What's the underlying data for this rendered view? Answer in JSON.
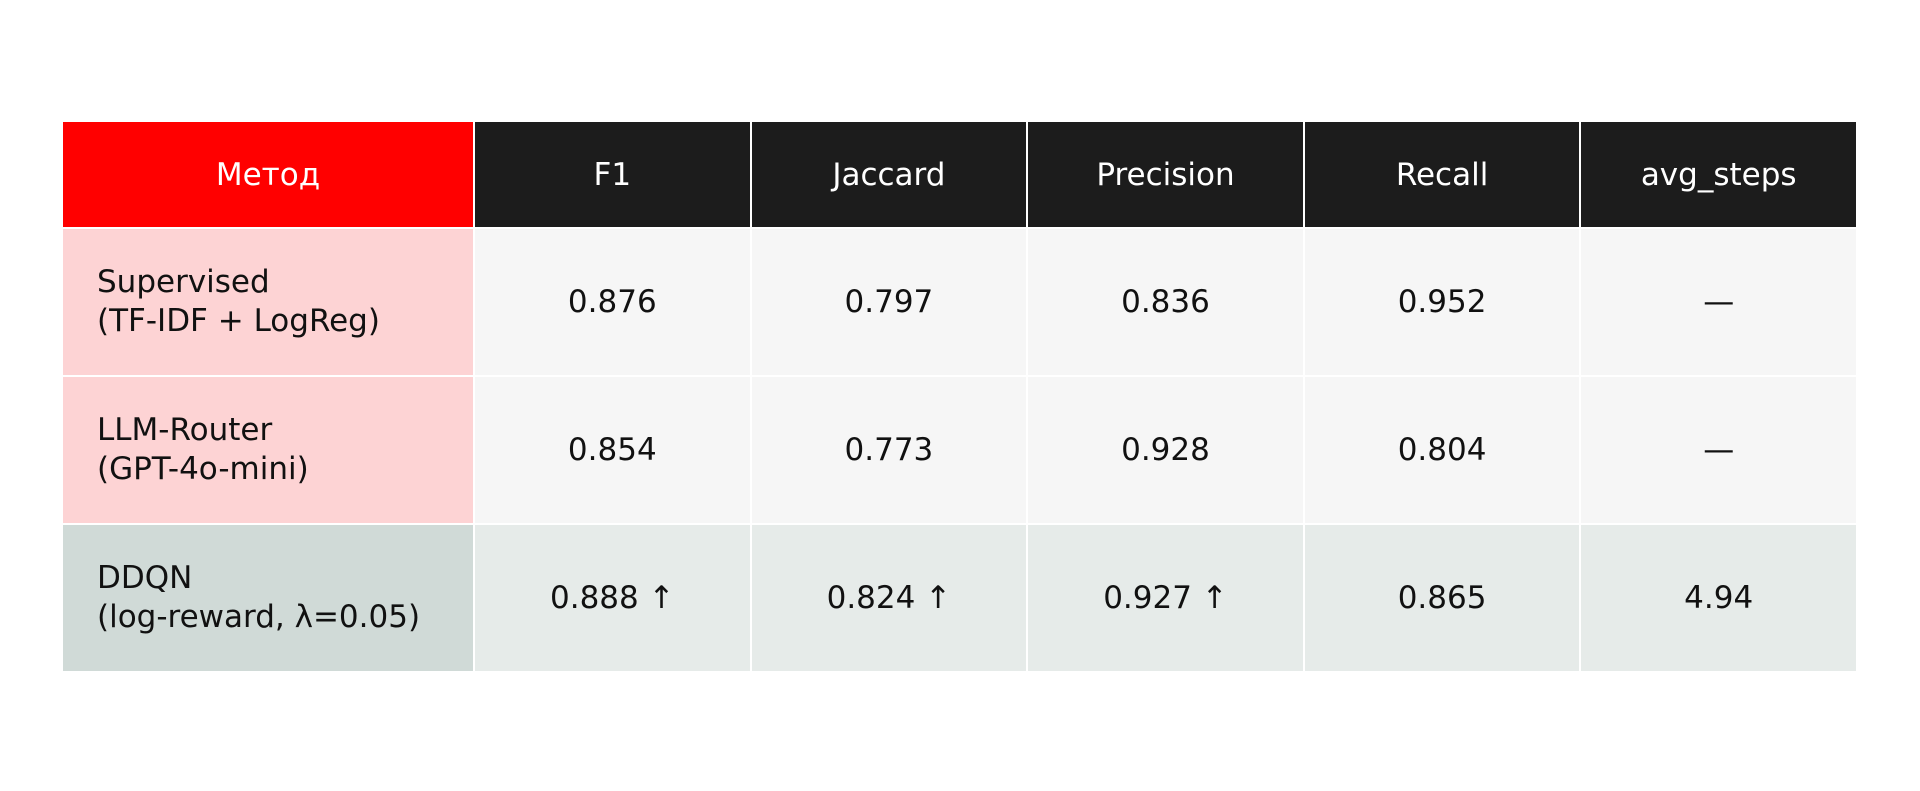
{
  "table": {
    "header": [
      "Метод",
      "F1",
      "Jaccard",
      "Precision",
      "Recall",
      "avg_steps"
    ],
    "rows": [
      [
        "Supervised\n(TF-IDF + LogReg)",
        "0.876",
        "0.797",
        "0.836",
        "0.952",
        "—"
      ],
      [
        "LLM-Router\n(GPT-4o-mini)",
        "0.854",
        "0.773",
        "0.928",
        "0.804",
        "—"
      ],
      [
        "DDQN\n(log-reward, λ=0.05)",
        "0.888 ↑",
        "0.824 ↑",
        "0.927 ↑",
        "0.865",
        "4.94"
      ]
    ]
  }
}
